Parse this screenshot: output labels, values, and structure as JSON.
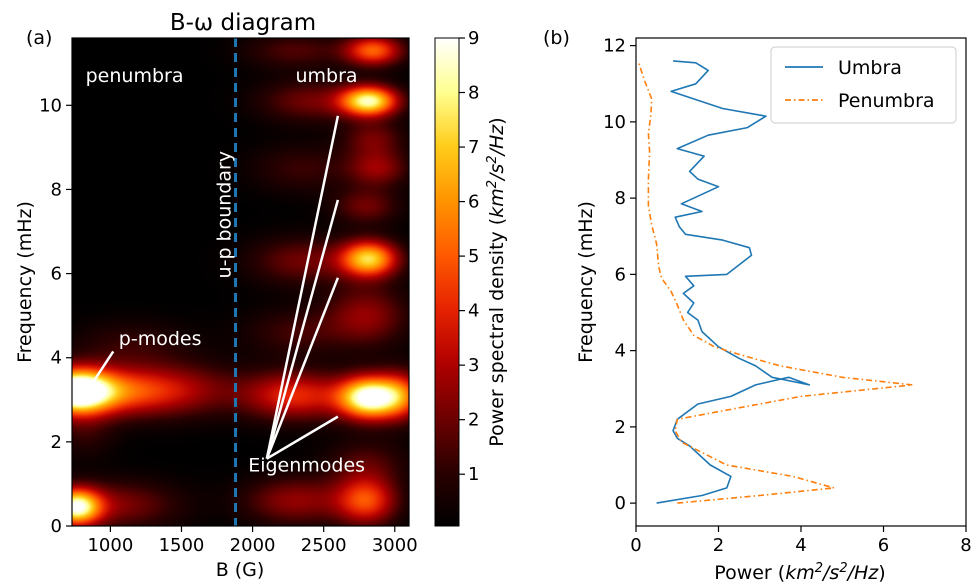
{
  "panel_labels": {
    "left": "(a)",
    "right": "(b)"
  },
  "colorbar": {
    "label": "Power spectral density (km²/s²/Hz)",
    "ticks": [
      "1",
      "2",
      "3",
      "4",
      "5",
      "6",
      "7",
      "8",
      "9"
    ],
    "tick_values": [
      1,
      2,
      3,
      4,
      5,
      6,
      7,
      8,
      9
    ],
    "range": [
      0.05,
      9
    ],
    "colormap": [
      "#000000",
      "#2a0000",
      "#6e0000",
      "#b00000",
      "#e62200",
      "#ff5a00",
      "#ff9400",
      "#ffcc1a",
      "#ffff90",
      "#ffffff"
    ]
  },
  "annotations": {
    "penumbra": "penumbra",
    "umbra": "umbra",
    "boundary": "u-p boundary",
    "pmodes": "p-modes",
    "eigenmodes": "Eigenmodes"
  },
  "chart_data": [
    {
      "type": "heatmap",
      "title": "B-ω diagram",
      "xlabel": "B (G)",
      "ylabel": "Frequency (mHz)",
      "xlim": [
        730,
        3100
      ],
      "ylim": [
        0,
        11.6
      ],
      "x_ticks": [
        1000,
        1500,
        2000,
        2500,
        3000
      ],
      "y_ticks": [
        0,
        2,
        4,
        6,
        8,
        10
      ],
      "boundary_B": 1880,
      "boundary_color": "#1f77b4",
      "blobs": [
        {
          "B": 760,
          "f": 3.2,
          "value": 9.0,
          "sB": 170,
          "sf": 0.36
        },
        {
          "B": 1050,
          "f": 3.2,
          "value": 4.5,
          "sB": 340,
          "sf": 0.4
        },
        {
          "B": 1550,
          "f": 3.25,
          "value": 1.6,
          "sB": 300,
          "sf": 0.45
        },
        {
          "B": 760,
          "f": 0.45,
          "value": 8.0,
          "sB": 120,
          "sf": 0.3
        },
        {
          "B": 1050,
          "f": 0.5,
          "value": 2.2,
          "sB": 300,
          "sf": 0.4
        },
        {
          "B": 1150,
          "f": 4.3,
          "value": 1.1,
          "sB": 300,
          "sf": 0.4
        },
        {
          "B": 820,
          "f": 2.2,
          "value": 1.0,
          "sB": 150,
          "sf": 0.4
        },
        {
          "B": 2820,
          "f": 3.05,
          "value": 9.0,
          "sB": 150,
          "sf": 0.35
        },
        {
          "B": 2300,
          "f": 3.1,
          "value": 4.0,
          "sB": 250,
          "sf": 0.4
        },
        {
          "B": 3050,
          "f": 3.1,
          "value": 4.0,
          "sB": 120,
          "sf": 0.4
        },
        {
          "B": 2820,
          "f": 6.35,
          "value": 7.0,
          "sB": 140,
          "sf": 0.3
        },
        {
          "B": 2350,
          "f": 6.3,
          "value": 2.0,
          "sB": 260,
          "sf": 0.4
        },
        {
          "B": 2820,
          "f": 10.1,
          "value": 8.0,
          "sB": 140,
          "sf": 0.25
        },
        {
          "B": 2400,
          "f": 10.1,
          "value": 2.0,
          "sB": 250,
          "sf": 0.35
        },
        {
          "B": 2850,
          "f": 11.3,
          "value": 5.0,
          "sB": 140,
          "sf": 0.25
        },
        {
          "B": 2880,
          "f": 8.5,
          "value": 2.5,
          "sB": 150,
          "sf": 0.3
        },
        {
          "B": 2800,
          "f": 7.6,
          "value": 2.0,
          "sB": 160,
          "sf": 0.3
        },
        {
          "B": 2850,
          "f": 9.2,
          "value": 2.0,
          "sB": 150,
          "sf": 0.3
        },
        {
          "B": 2800,
          "f": 5.0,
          "value": 2.5,
          "sB": 200,
          "sf": 0.5
        },
        {
          "B": 2800,
          "f": 0.6,
          "value": 4.5,
          "sB": 150,
          "sf": 0.4
        },
        {
          "B": 2300,
          "f": 0.6,
          "value": 2.5,
          "sB": 250,
          "sf": 0.4
        },
        {
          "B": 2800,
          "f": 1.5,
          "value": 1.5,
          "sB": 200,
          "sf": 0.4
        },
        {
          "B": 2300,
          "f": 4.6,
          "value": 1.3,
          "sB": 250,
          "sf": 0.4
        },
        {
          "B": 2350,
          "f": 8.5,
          "value": 1.2,
          "sB": 250,
          "sf": 0.4
        },
        {
          "B": 2300,
          "f": 11.3,
          "value": 1.5,
          "sB": 250,
          "sf": 0.3
        }
      ],
      "pmodes_line": {
        "from": [
          865,
          3.35
        ],
        "to": [
          1020,
          4.15
        ],
        "label_at": [
          1350,
          4.3
        ]
      },
      "eigen_lines": {
        "origin": [
          2100,
          1.6
        ],
        "ends": [
          [
            2600,
            2.6
          ],
          [
            2600,
            5.9
          ],
          [
            2600,
            7.75
          ],
          [
            2600,
            9.75
          ]
        ],
        "label_at": [
          2380,
          1.3
        ]
      },
      "penumbra_label_at": [
        1170,
        10.55
      ],
      "umbra_label_at": [
        2520,
        10.55
      ],
      "boundary_label_at": [
        1845,
        7.4
      ]
    },
    {
      "type": "line",
      "xlabel": "Power (km²/s²/Hz)",
      "ylabel": "Frequency (mHz)",
      "xlim": [
        0,
        8
      ],
      "ylim": [
        -0.6,
        12.2
      ],
      "x_ticks": [
        0,
        2,
        4,
        6,
        8
      ],
      "y_ticks": [
        0,
        2,
        4,
        6,
        8,
        10,
        12
      ],
      "legend_position": "top-right",
      "series": [
        {
          "name": "Umbra",
          "color": "#1f77b4",
          "dash": "none",
          "x": [
            0.5,
            1.6,
            2.2,
            2.3,
            1.8,
            1.6,
            1.3,
            1.0,
            0.9,
            1.0,
            1.5,
            2.3,
            2.9,
            3.7,
            4.2,
            3.3,
            2.9,
            2.5,
            2.0,
            1.6,
            1.5,
            1.25,
            1.4,
            1.15,
            1.4,
            1.2,
            2.2,
            2.8,
            2.75,
            2.1,
            1.2,
            1.05,
            0.95,
            1.6,
            1.1,
            1.6,
            2.0,
            1.5,
            1.3,
            1.65,
            1.0,
            1.75,
            2.7,
            3.15,
            2.1,
            0.85,
            1.45,
            1.75,
            1.45,
            0.9
          ],
          "y": [
            0.0,
            0.2,
            0.4,
            0.7,
            1.0,
            1.2,
            1.5,
            1.7,
            1.9,
            2.2,
            2.6,
            2.8,
            3.1,
            3.3,
            3.1,
            3.3,
            3.6,
            3.8,
            4.1,
            4.5,
            4.8,
            5.0,
            5.25,
            5.5,
            5.7,
            5.95,
            6.0,
            6.5,
            6.7,
            6.9,
            7.05,
            7.25,
            7.5,
            7.65,
            7.85,
            8.1,
            8.3,
            8.5,
            8.7,
            9.1,
            9.3,
            9.65,
            9.85,
            10.15,
            10.35,
            10.8,
            11.0,
            11.35,
            11.55,
            11.6
          ]
        },
        {
          "name": "Penumbra",
          "color": "#ff7f0e",
          "dash": "6,3,1.5,3",
          "x": [
            1.0,
            3.0,
            4.8,
            3.8,
            2.2,
            1.1,
            0.95,
            1.0,
            2.0,
            4.0,
            6.7,
            5.0,
            3.5,
            2.5,
            1.9,
            1.4,
            1.15,
            1.0,
            0.85,
            0.62,
            0.55,
            0.5,
            0.38,
            0.3,
            0.3,
            0.33,
            0.3,
            0.36,
            0.38,
            0.2,
            0.05
          ],
          "y": [
            0.0,
            0.2,
            0.4,
            0.7,
            1.0,
            1.6,
            1.9,
            2.2,
            2.4,
            2.8,
            3.1,
            3.3,
            3.6,
            3.9,
            4.1,
            4.4,
            4.8,
            5.2,
            5.55,
            5.9,
            6.2,
            6.8,
            7.3,
            7.8,
            8.5,
            9.2,
            9.7,
            10.2,
            10.6,
            11.1,
            11.6
          ]
        }
      ]
    }
  ]
}
